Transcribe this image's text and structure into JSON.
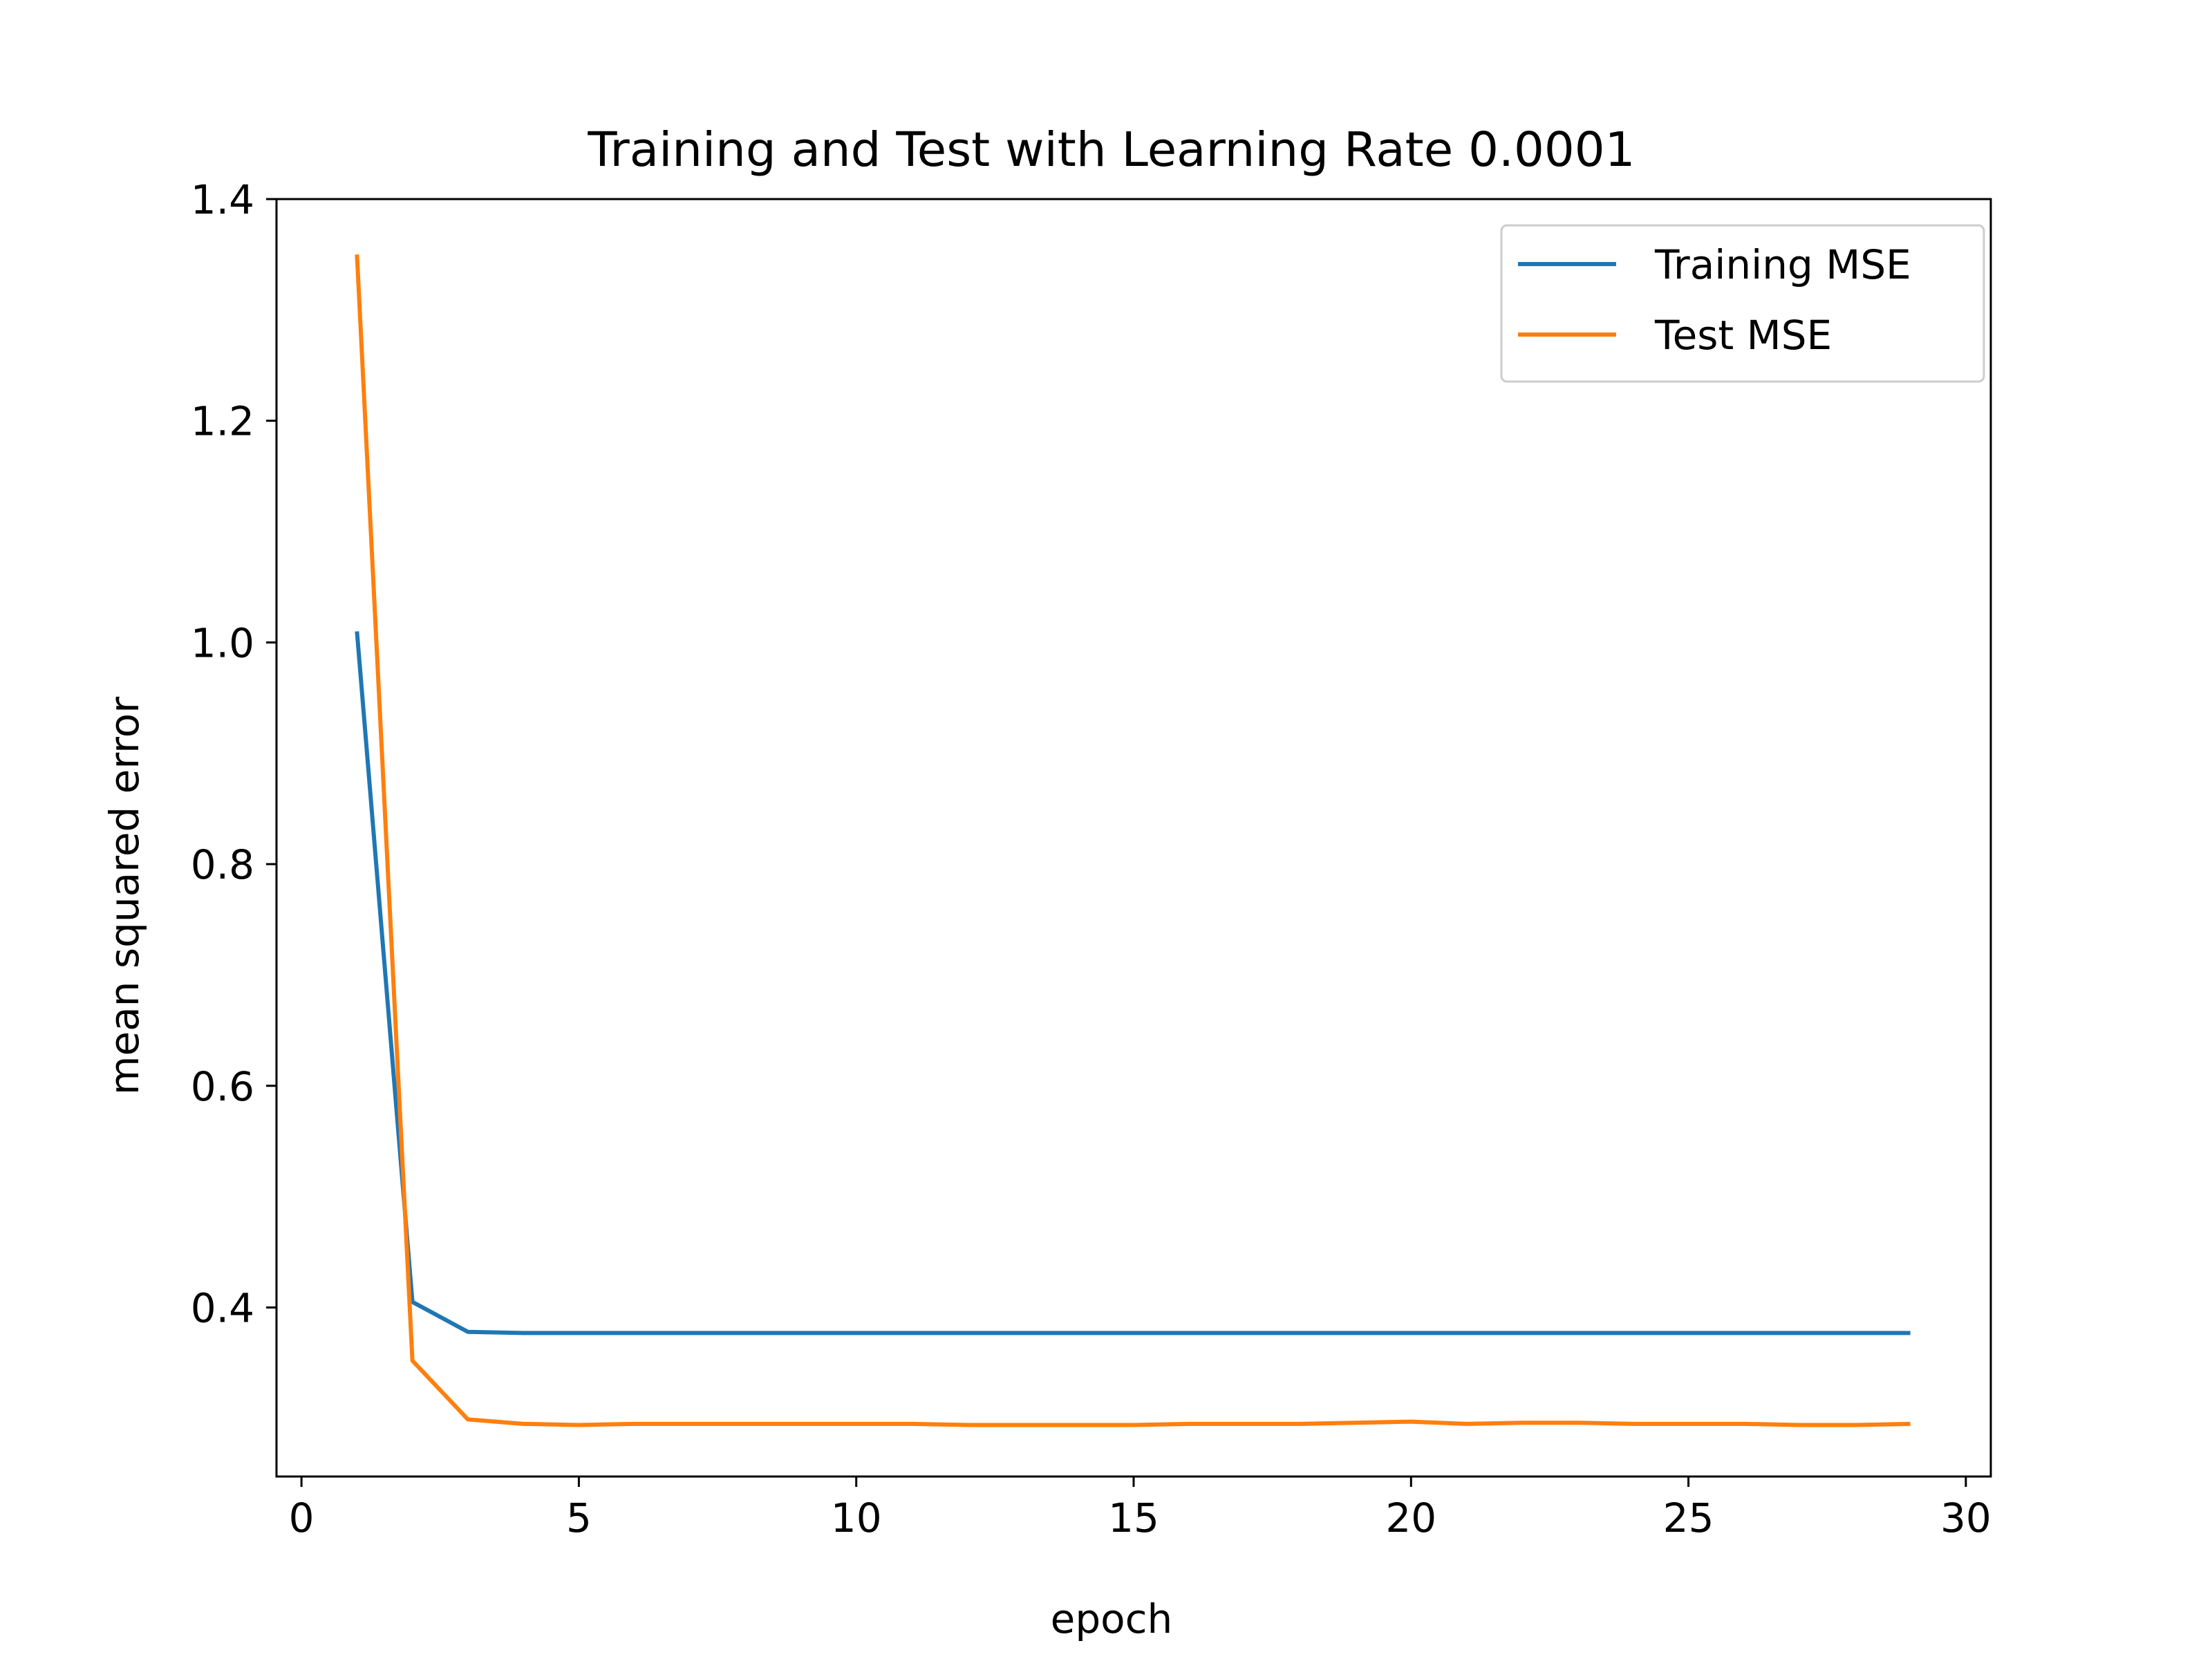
{
  "chart_data": {
    "type": "line",
    "title": "Training and Test with Learning Rate 0.0001",
    "xlabel": "epoch",
    "ylabel": "mean squared error",
    "xlim": [
      -0.45,
      30.45
    ],
    "ylim": [
      0.2475,
      1.4
    ],
    "xticks": [
      0,
      5,
      10,
      15,
      20,
      25,
      30
    ],
    "xtick_labels": [
      "0",
      "5",
      "10",
      "15",
      "20",
      "25",
      "30"
    ],
    "yticks": [
      0.4,
      0.6,
      0.8,
      1.0,
      1.2,
      1.4
    ],
    "ytick_labels": [
      "0.4",
      "0.6",
      "0.8",
      "1.0",
      "1.2",
      "1.4"
    ],
    "grid": false,
    "legend_position": "top-right",
    "x": [
      1,
      2,
      3,
      4,
      5,
      6,
      7,
      8,
      9,
      10,
      11,
      12,
      13,
      14,
      15,
      16,
      17,
      18,
      19,
      20,
      21,
      22,
      23,
      24,
      25,
      26,
      27,
      28,
      29
    ],
    "series": [
      {
        "name": "Training MSE",
        "color": "#1f77b4",
        "values": [
          1.01,
          0.405,
          0.378,
          0.377,
          0.377,
          0.377,
          0.377,
          0.377,
          0.377,
          0.377,
          0.377,
          0.377,
          0.377,
          0.377,
          0.377,
          0.377,
          0.377,
          0.377,
          0.377,
          0.377,
          0.377,
          0.377,
          0.377,
          0.377,
          0.377,
          0.377,
          0.377,
          0.377,
          0.377
        ]
      },
      {
        "name": "Test MSE",
        "color": "#ff7f0e",
        "values": [
          1.35,
          0.352,
          0.299,
          0.295,
          0.294,
          0.295,
          0.295,
          0.295,
          0.295,
          0.295,
          0.295,
          0.294,
          0.294,
          0.294,
          0.294,
          0.295,
          0.295,
          0.295,
          0.296,
          0.297,
          0.295,
          0.296,
          0.296,
          0.295,
          0.295,
          0.295,
          0.294,
          0.294,
          0.295
        ]
      }
    ]
  }
}
